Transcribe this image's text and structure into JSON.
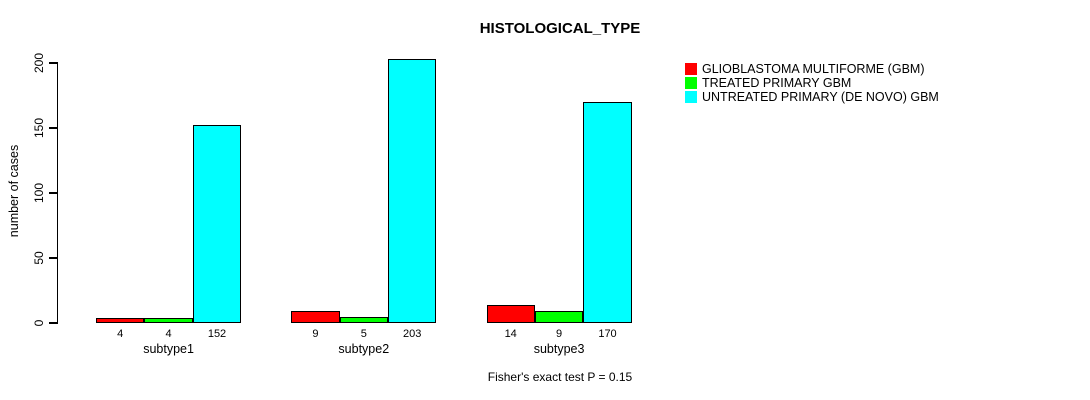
{
  "title": "HISTOLOGICAL_TYPE",
  "y_axis": {
    "label": "number of cases",
    "ticks": [
      0,
      50,
      100,
      150,
      200
    ]
  },
  "footer_note": "Fisher's exact test P = 0.15",
  "legend": {
    "position": "right",
    "entries": [
      {
        "label": "GLIOBLASTOMA MULTIFORME (GBM)",
        "color": "#FF0000"
      },
      {
        "label": "TREATED PRIMARY GBM",
        "color": "#00FF00"
      },
      {
        "label": "UNTREATED PRIMARY (DE NOVO) GBM",
        "color": "#00FFFF"
      }
    ]
  },
  "chart_data": {
    "type": "bar",
    "title": "HISTOLOGICAL_TYPE",
    "xlabel": "",
    "ylabel": "number of cases",
    "ylim": [
      0,
      200
    ],
    "grid": false,
    "legend_position": "right",
    "bar_value_labels_shown": true,
    "categories": [
      "subtype1",
      "subtype2",
      "subtype3"
    ],
    "series": [
      {
        "name": "GLIOBLASTOMA MULTIFORME (GBM)",
        "color": "#FF0000",
        "values": [
          4,
          9,
          14
        ]
      },
      {
        "name": "TREATED PRIMARY GBM",
        "color": "#00FF00",
        "values": [
          4,
          5,
          9
        ]
      },
      {
        "name": "UNTREATED PRIMARY (DE NOVO) GBM",
        "color": "#00FFFF",
        "values": [
          152,
          203,
          170
        ]
      }
    ],
    "annotation": "Fisher's exact test P = 0.15"
  }
}
